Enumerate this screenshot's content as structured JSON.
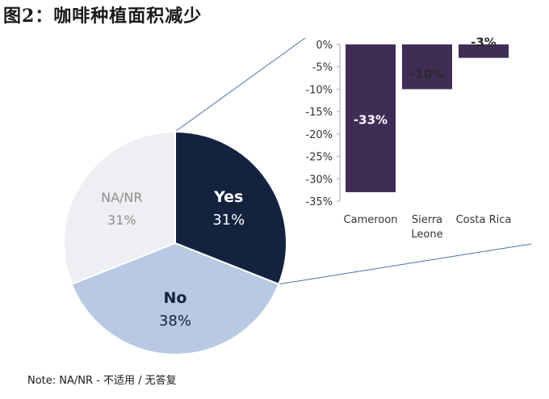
{
  "figure_title": "图2：咖啡种植面积减少",
  "note": "Note: NA/NR - 不适用 / 无答复",
  "chart_data": [
    {
      "type": "pie",
      "labels": [
        "Yes",
        "No",
        "NA/NR"
      ],
      "values": [
        31,
        38,
        31
      ],
      "value_labels": [
        "31%",
        "38%",
        "31%"
      ],
      "colors": [
        "#13223f",
        "#b7c9e3",
        "#efeef2"
      ],
      "label_colors": [
        "#ffffff",
        "#13223f",
        "#8c8c8c"
      ],
      "bold_labels": [
        true,
        true,
        false
      ]
    },
    {
      "type": "bar",
      "categories": [
        [
          "Cameroon"
        ],
        [
          "Sierra",
          "Leone"
        ],
        [
          "Costa Rica"
        ]
      ],
      "values": [
        -33,
        -10,
        -3
      ],
      "data_labels": [
        "-33%",
        "-10%",
        "-3%"
      ],
      "ylim": [
        -35,
        0
      ],
      "yticks": [
        "0%",
        "-5%",
        "-10%",
        "-15%",
        "-20%",
        "-25%",
        "-30%",
        "-35%"
      ],
      "bar_color": "#3f2d56",
      "grid": false,
      "axis_color": "#aaaaaa"
    }
  ],
  "connector_color": "#4a6fa5"
}
